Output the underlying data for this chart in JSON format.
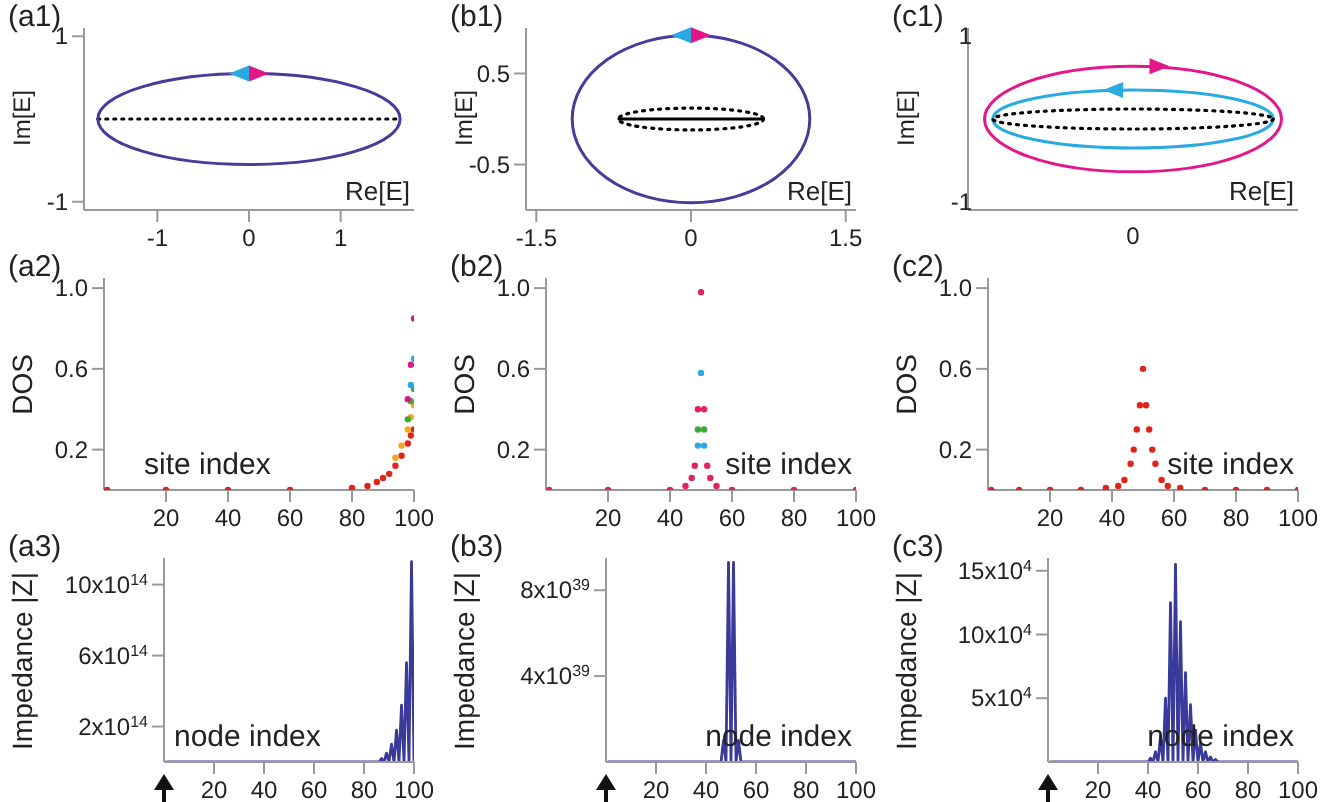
{
  "chart_data": [
    {
      "type": "line",
      "title": "(a1)",
      "xlabel": "Re[E]",
      "ylabel": "Im[E]",
      "xlim": [
        -1.8,
        1.8
      ],
      "ylim": [
        -1.1,
        1.1
      ],
      "xticks": [
        -1,
        0,
        1
      ],
      "yticks": [
        -1,
        1
      ],
      "marker": "none",
      "series": [
        {
          "color": "#000000",
          "line_style": "dotted",
          "x": [
            -1.65,
            1.65
          ],
          "values": [
            0,
            0
          ]
        }
      ]
    },
    {
      "type": "line",
      "title": "(b1)",
      "xlabel": "Re[E]",
      "ylabel": "Im[E]",
      "xlim": [
        -1.6,
        1.6
      ],
      "ylim": [
        -1,
        1
      ],
      "xticks": [
        {
          "value": -1.5,
          "label": "-1.5"
        },
        0,
        1.5
      ],
      "yticks": [
        -0.5,
        0.5
      ],
      "marker": "none",
      "series": [
        {
          "color": "#000000",
          "line_style": "solid",
          "x": [
            -0.7,
            0.7
          ],
          "values": [
            0,
            0
          ]
        }
      ]
    },
    {
      "type": "other",
      "title": "(c1)",
      "xlabel": "Re[E]",
      "ylabel": "Im[E]",
      "annotations": [
        "1",
        "0",
        "-1"
      ]
    },
    {
      "type": "scatter",
      "title": "(a2)",
      "xlabel": "site index",
      "ylabel": "DOS",
      "xlim": [
        0,
        100
      ],
      "ylim": [
        0,
        1.05
      ],
      "xticks": [
        20,
        40,
        60,
        80,
        100
      ],
      "yticks": [
        0.2,
        0.6,
        {
          "value": 1,
          "label": "1.0"
        }
      ],
      "marker": "circle",
      "series": [
        {
          "color": "#e2231a",
          "x": [
            1,
            20,
            40,
            60,
            80,
            85,
            88,
            90,
            92,
            94,
            96,
            98,
            99,
            100
          ],
          "values": [
            0,
            0,
            0,
            0,
            0.01,
            0.02,
            0.04,
            0.06,
            0.08,
            0.12,
            0.17,
            0.23,
            0.27,
            0.3
          ]
        },
        {
          "color": "#f7a51c",
          "x": [
            94,
            96,
            98,
            99,
            100
          ],
          "values": [
            0.16,
            0.22,
            0.3,
            0.36,
            0.42
          ]
        },
        {
          "color": "#3aaa35",
          "x": [
            98,
            99,
            100
          ],
          "values": [
            0.35,
            0.44,
            0.5
          ]
        },
        {
          "color": "#29abe2",
          "x": [
            99,
            100
          ],
          "values": [
            0.52,
            0.65
          ]
        },
        {
          "color": "#d81b7f",
          "x": [
            98,
            99,
            100
          ],
          "values": [
            0.45,
            0.62,
            0.85
          ]
        }
      ]
    },
    {
      "type": "scatter",
      "title": "(b2)",
      "xlabel": "site index",
      "ylabel": "DOS",
      "xlim": [
        0,
        100
      ],
      "ylim": [
        0,
        1.05
      ],
      "xticks": [
        20,
        40,
        60,
        80,
        100
      ],
      "yticks": [
        0.2,
        0.6,
        {
          "value": 1,
          "label": "1.0"
        }
      ],
      "marker": "circle",
      "series": [
        {
          "color": "#3aaa35",
          "x": [
            49,
            51
          ],
          "values": [
            0.3,
            0.3
          ]
        },
        {
          "color": "#29abe2",
          "x": [
            49,
            50,
            51
          ],
          "values": [
            0.22,
            0.58,
            0.22
          ]
        },
        {
          "color": "#e2235a",
          "x": [
            1,
            20,
            40,
            45,
            47,
            48,
            49,
            50,
            51,
            52,
            53,
            55,
            60,
            80,
            100
          ],
          "values": [
            0,
            0,
            0,
            0.02,
            0.06,
            0.12,
            0.4,
            0.98,
            0.4,
            0.12,
            0.06,
            0.02,
            0,
            0,
            0
          ]
        }
      ]
    },
    {
      "type": "scatter",
      "title": "(c2)",
      "xlabel": "site index",
      "ylabel": "DOS",
      "xlim": [
        0,
        100
      ],
      "ylim": [
        0,
        1.05
      ],
      "xticks": [
        20,
        40,
        60,
        80,
        100
      ],
      "yticks": [
        0.2,
        0.6,
        {
          "value": 1,
          "label": "1.0"
        }
      ],
      "marker": "circle",
      "series": [
        {
          "color": "#e2231a",
          "x": [
            1,
            10,
            20,
            30,
            38,
            42,
            44,
            46,
            47,
            48,
            49,
            50,
            51,
            52,
            53,
            54,
            56,
            58,
            62,
            70,
            80,
            90,
            100
          ],
          "values": [
            0,
            0,
            0,
            0,
            0.01,
            0.02,
            0.05,
            0.13,
            0.2,
            0.3,
            0.42,
            0.6,
            0.42,
            0.3,
            0.2,
            0.13,
            0.05,
            0.02,
            0.01,
            0,
            0,
            0,
            0
          ]
        }
      ]
    },
    {
      "type": "line",
      "title": "(a3)",
      "xlabel": "node index",
      "ylabel": "Impedance |Z|",
      "xlim": [
        0,
        100
      ],
      "ylim": [
        0,
        1150000000000000.0
      ],
      "xticks": [
        20,
        40,
        60,
        80,
        100
      ],
      "yticks": [
        {
          "value": 200000000000000.0,
          "label": "2x10$^{14}$"
        },
        {
          "value": 600000000000000.0,
          "label": "6x10$^{14}$"
        },
        {
          "value": 1000000000000000.0,
          "label": "10x10$^{14}$"
        }
      ],
      "marker": "none",
      "series": [
        {
          "color": "#3a3a9a",
          "line_style": "solid",
          "x": [
            1,
            86,
            87,
            88,
            89,
            90,
            91,
            92,
            93,
            94,
            95,
            96,
            97,
            98,
            99,
            100
          ],
          "values": [
            0,
            0,
            20000000000000.0,
            0,
            50000000000000.0,
            0,
            100000000000000.0,
            0,
            180000000000000.0,
            0,
            320000000000000.0,
            0,
            560000000000000.0,
            0,
            1130000000000000.0,
            0
          ]
        }
      ]
    },
    {
      "type": "line",
      "title": "(b3)",
      "xlabel": "node index",
      "ylabel": "Impedance |Z|",
      "xlim": [
        0,
        100
      ],
      "ylim": [
        0,
        9.5e+39
      ],
      "xticks": [
        20,
        40,
        60,
        80,
        100
      ],
      "yticks": [
        {
          "value": 4e+39,
          "label": "4x10$^{39}$"
        },
        {
          "value": 8e+39,
          "label": "8x10$^{39}$"
        }
      ],
      "marker": "none",
      "series": [
        {
          "color": "#3a3a9a",
          "line_style": "solid",
          "x": [
            1,
            46,
            47,
            48,
            49,
            50,
            51,
            52,
            53,
            54,
            100
          ],
          "values": [
            0,
            0,
            1e+39,
            0,
            9.3e+39,
            0,
            9.3e+39,
            0,
            1e+39,
            0,
            0
          ]
        }
      ]
    },
    {
      "type": "line",
      "title": "(c3)",
      "xlabel": "node index",
      "ylabel": "Impedance |Z|",
      "xlim": [
        0,
        100
      ],
      "ylim": [
        0,
        160000.0
      ],
      "xticks": [
        20,
        40,
        60,
        80,
        100
      ],
      "yticks": [
        {
          "value": 50000.0,
          "label": "5x10$^{4}$"
        },
        {
          "value": 100000.0,
          "label": "10x10$^{4}$"
        },
        {
          "value": 150000.0,
          "label": "15x10$^{4}$"
        }
      ],
      "marker": "none",
      "series": [
        {
          "color": "#3a3a9a",
          "line_style": "solid",
          "x": [
            1,
            40,
            41,
            42,
            43,
            44,
            45,
            46,
            47,
            48,
            49,
            50,
            51,
            52,
            53,
            54,
            55,
            56,
            57,
            58,
            59,
            60,
            61,
            62,
            63,
            64,
            65,
            66,
            67,
            68,
            70,
            100
          ],
          "values": [
            0,
            0,
            3000.0,
            0,
            8000.0,
            0,
            20000.0,
            0,
            50000.0,
            0,
            125000.0,
            0,
            155000.0,
            0,
            110000.0,
            0,
            70000.0,
            0,
            45000.0,
            0,
            25000.0,
            0,
            15000.0,
            0,
            8000.0,
            0,
            4000.0,
            0,
            2000.0,
            0,
            0,
            0
          ]
        }
      ]
    }
  ]
}
